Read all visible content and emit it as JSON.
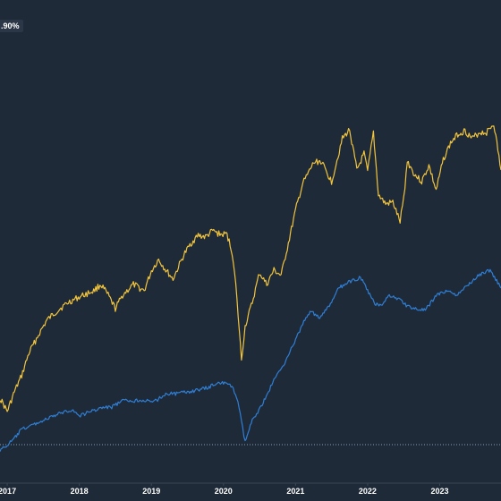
{
  "top_label": ".90%",
  "chart_data": {
    "type": "line",
    "x_ticks": [
      "2017",
      "2018",
      "2019",
      "2020",
      "2021",
      "2022",
      "2023"
    ],
    "xlim": [
      2016.9,
      2023.85
    ],
    "series": [
      {
        "color": "#f2c53d",
        "x": [
          2016.9,
          2017.0,
          2017.1,
          2017.2,
          2017.3,
          2017.45,
          2017.55,
          2017.7,
          2017.85,
          2018.0,
          2018.2,
          2018.3,
          2018.4,
          2018.5,
          2018.6,
          2018.75,
          2018.9,
          2019.0,
          2019.1,
          2019.2,
          2019.3,
          2019.45,
          2019.55,
          2019.65,
          2019.75,
          2019.85,
          2019.95,
          2020.05,
          2020.12,
          2020.17,
          2020.22,
          2020.25,
          2020.3,
          2020.4,
          2020.5,
          2020.6,
          2020.7,
          2020.8,
          2020.9,
          2021.0,
          2021.1,
          2021.15,
          2021.25,
          2021.35,
          2021.5,
          2021.65,
          2021.75,
          2021.85,
          2021.95,
          2022.0,
          2022.08,
          2022.15,
          2022.25,
          2022.35,
          2022.45,
          2022.5,
          2022.55,
          2022.65,
          2022.75,
          2022.85,
          2022.95,
          2023.05,
          2023.15,
          2023.25,
          2023.35,
          2023.45,
          2023.55,
          2023.65,
          2023.75,
          2023.85
        ],
        "values": [
          445,
          460,
          438,
          420,
          395,
          372,
          358,
          347,
          338,
          332,
          325,
          318,
          330,
          345,
          330,
          318,
          325,
          303,
          290,
          302,
          312,
          285,
          272,
          263,
          265,
          258,
          262,
          262,
          282,
          318,
          370,
          402,
          365,
          338,
          305,
          318,
          302,
          308,
          272,
          235,
          205,
          198,
          182,
          180,
          203,
          155,
          145,
          190,
          172,
          192,
          148,
          218,
          228,
          226,
          248,
          222,
          180,
          195,
          203,
          185,
          213,
          178,
          160,
          150,
          146,
          155,
          148,
          148,
          138,
          190
        ]
      },
      {
        "color": "#2f7fd6",
        "x": [
          2016.9,
          2017.0,
          2017.1,
          2017.2,
          2017.35,
          2017.5,
          2017.65,
          2017.8,
          2017.9,
          2018.0,
          2018.15,
          2018.3,
          2018.45,
          2018.6,
          2018.75,
          2018.9,
          2019.0,
          2019.1,
          2019.2,
          2019.35,
          2019.5,
          2019.65,
          2019.8,
          2019.9,
          2020.0,
          2020.12,
          2020.2,
          2020.25,
          2020.3,
          2020.4,
          2020.55,
          2020.7,
          2020.85,
          2021.0,
          2021.1,
          2021.2,
          2021.35,
          2021.5,
          2021.6,
          2021.75,
          2021.9,
          2022.0,
          2022.1,
          2022.2,
          2022.3,
          2022.45,
          2022.55,
          2022.65,
          2022.8,
          2022.95,
          2023.1,
          2023.25,
          2023.4,
          2023.5,
          2023.6,
          2023.7,
          2023.85
        ],
        "values": [
          503,
          498,
          490,
          480,
          475,
          470,
          465,
          460,
          458,
          465,
          460,
          456,
          455,
          448,
          448,
          447,
          450,
          446,
          440,
          440,
          438,
          436,
          433,
          428,
          428,
          432,
          448,
          472,
          494,
          470,
          450,
          425,
          405,
          380,
          362,
          348,
          355,
          338,
          322,
          315,
          310,
          325,
          340,
          340,
          330,
          335,
          342,
          345,
          347,
          330,
          325,
          330,
          318,
          310,
          305,
          302,
          322
        ]
      }
    ]
  }
}
